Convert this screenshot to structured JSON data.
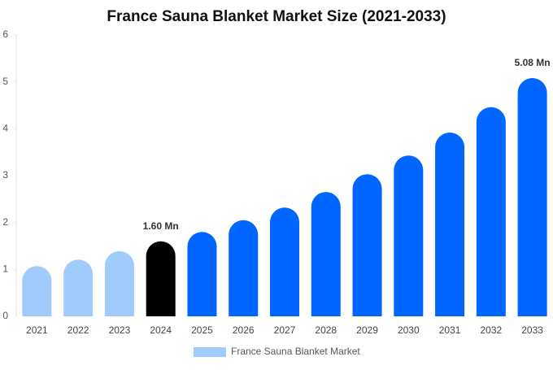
{
  "chart_data": {
    "type": "bar",
    "title": "France Sauna Blanket Market Size (2021-2033)",
    "categories": [
      "2021",
      "2022",
      "2023",
      "2024",
      "2025",
      "2026",
      "2027",
      "2028",
      "2029",
      "2030",
      "2031",
      "2032",
      "2033"
    ],
    "series": [
      {
        "name": "France Sauna Blanket Market",
        "color": "#a0cbfb",
        "colors": [
          "#a0cbfb",
          "#a0cbfb",
          "#a0cbfb",
          "#000000",
          "#0066ff",
          "#0066ff",
          "#0066ff",
          "#0066ff",
          "#0066ff",
          "#0066ff",
          "#0066ff",
          "#0066ff",
          "#0066ff"
        ],
        "values": [
          1.07,
          1.21,
          1.39,
          1.6,
          1.8,
          2.05,
          2.32,
          2.65,
          3.03,
          3.43,
          3.92,
          4.46,
          5.08
        ],
        "value_labels": [
          null,
          null,
          null,
          "1.60 Mn",
          null,
          null,
          null,
          null,
          null,
          null,
          null,
          null,
          "5.08 Mn"
        ]
      }
    ],
    "ylim": [
      0,
      6
    ],
    "yticks": [
      0,
      1,
      2,
      3,
      4,
      5,
      6
    ],
    "legend": "bottom"
  }
}
